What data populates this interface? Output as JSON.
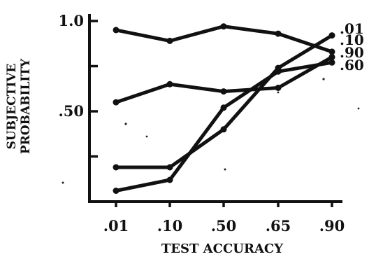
{
  "chart_data": {
    "type": "line",
    "title": "",
    "xlabel": "TEST ACCURACY",
    "ylabel_lines": [
      "SUBJECTIVE",
      "PROBABILITY"
    ],
    "categories": [
      ".01",
      ".10",
      ".50",
      ".65",
      ".90"
    ],
    "y_tick_labels": [
      "1.0",
      ".50"
    ],
    "ylim": [
      0,
      1.0
    ],
    "grid": false,
    "legend": "right end labels",
    "series": [
      {
        "name": ".01",
        "values": [
          0.95,
          0.89,
          0.97,
          0.93,
          0.83
        ]
      },
      {
        "name": ".10",
        "values": [
          0.55,
          0.65,
          0.61,
          0.63,
          0.8
        ]
      },
      {
        "name": ".90",
        "values": [
          0.19,
          0.19,
          0.4,
          0.74,
          0.92
        ]
      },
      {
        "name": ".60",
        "values": [
          0.06,
          0.12,
          0.52,
          0.72,
          0.77
        ]
      }
    ]
  }
}
